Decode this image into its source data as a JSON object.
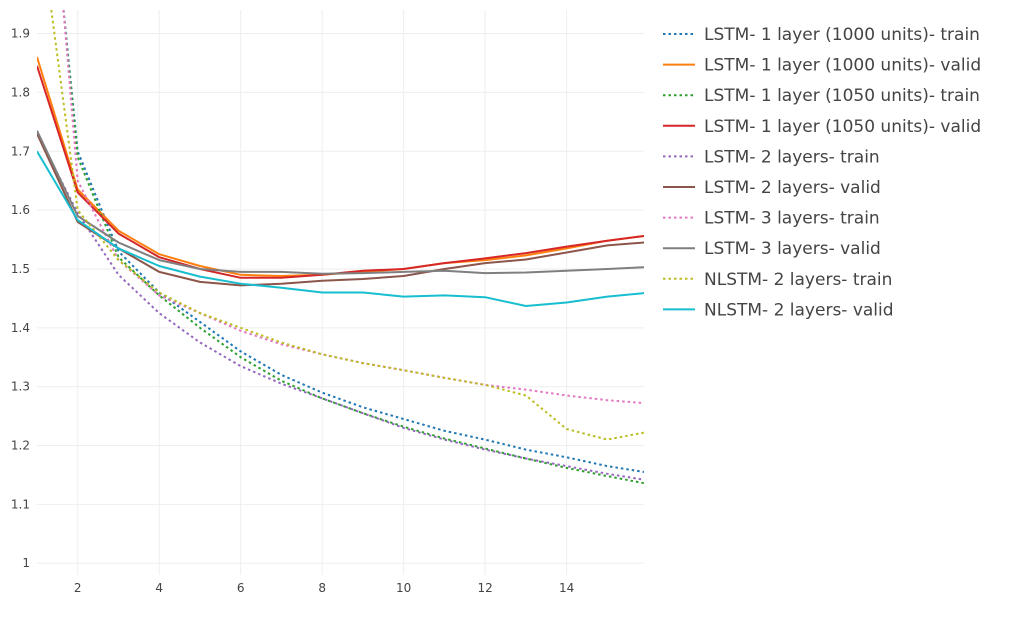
{
  "chart_data": {
    "type": "line",
    "title": "",
    "xlabel": "",
    "ylabel": "",
    "xlim": [
      1,
      15.9
    ],
    "ylim": [
      0.98,
      1.94
    ],
    "xticks": [
      2,
      4,
      6,
      8,
      10,
      12,
      14
    ],
    "yticks": [
      1,
      1.1,
      1.2,
      1.3,
      1.4,
      1.5,
      1.6,
      1.7,
      1.8,
      1.9
    ],
    "ytick_labels": [
      "1",
      "1.1",
      "1.2",
      "1.3",
      "1.4",
      "1.5",
      "1.6",
      "1.7",
      "1.8",
      "1.9"
    ],
    "grid": true,
    "legend_position": "right",
    "series": [
      {
        "name": "LSTM- 1 layer (1000 units)- train",
        "color": "#1f77b4",
        "dash": "dotted",
        "x": [
          1.65,
          2,
          3,
          4,
          5,
          6,
          7,
          8,
          9,
          10,
          11,
          12,
          13,
          14,
          15,
          15.9
        ],
        "y": [
          1.94,
          1.7,
          1.53,
          1.46,
          1.41,
          1.36,
          1.32,
          1.29,
          1.265,
          1.245,
          1.225,
          1.21,
          1.193,
          1.18,
          1.165,
          1.155
        ]
      },
      {
        "name": "LSTM- 1 layer (1000 units)- valid",
        "color": "#ff7f0e",
        "dash": "solid",
        "x": [
          1,
          2,
          3,
          4,
          5,
          6,
          7,
          8,
          9,
          10,
          11,
          12,
          13,
          14,
          15,
          15.9
        ],
        "y": [
          1.86,
          1.635,
          1.565,
          1.525,
          1.505,
          1.49,
          1.488,
          1.49,
          1.495,
          1.5,
          1.51,
          1.515,
          1.523,
          1.535,
          1.548,
          1.556
        ]
      },
      {
        "name": "LSTM- 1 layer (1050 units)- train",
        "color": "#2ca02c",
        "dash": "dotted",
        "x": [
          1.65,
          2,
          3,
          4,
          5,
          6,
          7,
          8,
          9,
          10,
          11,
          12,
          13,
          14,
          15,
          15.9
        ],
        "y": [
          1.94,
          1.69,
          1.52,
          1.455,
          1.4,
          1.35,
          1.31,
          1.28,
          1.255,
          1.232,
          1.212,
          1.195,
          1.178,
          1.162,
          1.148,
          1.136
        ]
      },
      {
        "name": "LSTM- 1 layer (1050 units)- valid",
        "color": "#d62728",
        "dash": "solid",
        "x": [
          1,
          2,
          3,
          4,
          5,
          6,
          7,
          8,
          9,
          10,
          11,
          12,
          13,
          14,
          15,
          15.9
        ],
        "y": [
          1.845,
          1.63,
          1.56,
          1.52,
          1.5,
          1.485,
          1.485,
          1.49,
          1.497,
          1.5,
          1.51,
          1.518,
          1.527,
          1.538,
          1.548,
          1.556
        ]
      },
      {
        "name": "LSTM- 2 layers- train",
        "color": "#9467bd",
        "dash": "dotted",
        "x": [
          1,
          2,
          3,
          4,
          5,
          6,
          7,
          8,
          9,
          10,
          11,
          12,
          13,
          14,
          15,
          15.9
        ],
        "y": [
          1.73,
          1.595,
          1.49,
          1.425,
          1.375,
          1.335,
          1.305,
          1.28,
          1.255,
          1.23,
          1.21,
          1.193,
          1.178,
          1.165,
          1.152,
          1.142
        ]
      },
      {
        "name": "LSTM- 2 layers- valid",
        "color": "#8c564b",
        "dash": "solid",
        "x": [
          1,
          2,
          3,
          4,
          5,
          6,
          7,
          8,
          9,
          10,
          11,
          12,
          13,
          14,
          15,
          15.9
        ],
        "y": [
          1.73,
          1.58,
          1.535,
          1.495,
          1.478,
          1.472,
          1.475,
          1.48,
          1.483,
          1.488,
          1.5,
          1.51,
          1.516,
          1.528,
          1.54,
          1.545
        ]
      },
      {
        "name": "LSTM- 3 layers- train",
        "color": "#e377c2",
        "dash": "dotted",
        "x": [
          1.65,
          2,
          3,
          4,
          5,
          6,
          7,
          8,
          9,
          10,
          11,
          12,
          13,
          14,
          15,
          15.9
        ],
        "y": [
          1.94,
          1.65,
          1.515,
          1.455,
          1.425,
          1.395,
          1.372,
          1.355,
          1.34,
          1.328,
          1.315,
          1.303,
          1.295,
          1.285,
          1.277,
          1.272
        ]
      },
      {
        "name": "LSTM- 3 layers- valid",
        "color": "#7f7f7f",
        "dash": "solid",
        "x": [
          1,
          2,
          3,
          4,
          5,
          6,
          7,
          8,
          9,
          10,
          11,
          12,
          13,
          14,
          15,
          15.9
        ],
        "y": [
          1.735,
          1.59,
          1.545,
          1.515,
          1.5,
          1.495,
          1.495,
          1.492,
          1.493,
          1.495,
          1.497,
          1.493,
          1.494,
          1.497,
          1.5,
          1.503
        ]
      },
      {
        "name": "NLSTM- 2 layers- train",
        "color": "#bcbd22",
        "dash": "dotted",
        "x": [
          1.35,
          2,
          3,
          4,
          5,
          6,
          7,
          8,
          9,
          10,
          11,
          12,
          13,
          14,
          15,
          15.9
        ],
        "y": [
          1.94,
          1.6,
          1.515,
          1.46,
          1.425,
          1.4,
          1.375,
          1.355,
          1.34,
          1.328,
          1.315,
          1.303,
          1.285,
          1.228,
          1.21,
          1.222
        ]
      },
      {
        "name": "NLSTM- 2 layers- valid",
        "color": "#17becf",
        "dash": "solid",
        "x": [
          1,
          2,
          3,
          4,
          5,
          6,
          7,
          8,
          9,
          10,
          11,
          12,
          13,
          14,
          15,
          15.9
        ],
        "y": [
          1.7,
          1.583,
          1.535,
          1.505,
          1.487,
          1.475,
          1.468,
          1.46,
          1.46,
          1.453,
          1.455,
          1.452,
          1.437,
          1.443,
          1.453,
          1.459
        ]
      }
    ]
  }
}
